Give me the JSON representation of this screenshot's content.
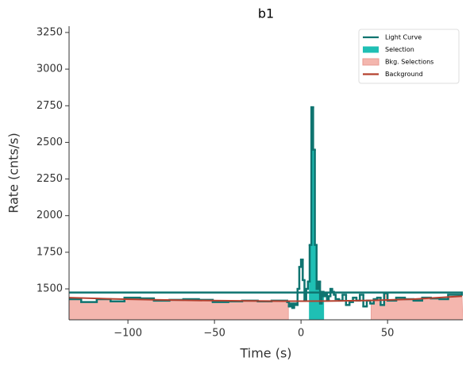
{
  "chart_data": {
    "type": "lightcurve",
    "title": "b1",
    "xlabel": "Time (s)",
    "ylabel": "Rate (cnts/s)",
    "xlim": [
      -134,
      93.5
    ],
    "ylim": [
      1289,
      3293
    ],
    "xticks": [
      {
        "value": -100,
        "label": "−100"
      },
      {
        "value": -50,
        "label": "−50"
      },
      0,
      50
    ],
    "yticks": [
      1500,
      1750,
      2000,
      2250,
      2500,
      2750,
      3000,
      3250
    ],
    "legend": "upper right",
    "series": [
      {
        "name": "Light Curve",
        "color": "#0f7470",
        "bins": [
          -135,
          -127,
          -118,
          -110,
          -102,
          -93,
          -85,
          -76,
          -68,
          -59,
          -51,
          -42,
          -34,
          -25,
          -17,
          -8,
          -7,
          -6,
          -5,
          -4,
          -3,
          -2,
          -1,
          0,
          1,
          2,
          3,
          4,
          5,
          6,
          7,
          8,
          9,
          10,
          11,
          12,
          13,
          14,
          15,
          16,
          17,
          18,
          19,
          20,
          22,
          24,
          26,
          28,
          30,
          32,
          34,
          36,
          38,
          40,
          42,
          44,
          46,
          48,
          50,
          55,
          60,
          65,
          70,
          75,
          80,
          85,
          93
        ],
        "values": [
          1430,
          1410,
          1430,
          1415,
          1440,
          1435,
          1420,
          1425,
          1430,
          1425,
          1410,
          1415,
          1420,
          1415,
          1420,
          1410,
          1380,
          1400,
          1370,
          1400,
          1390,
          1500,
          1650,
          1700,
          1560,
          1420,
          1500,
          1550,
          1800,
          2740,
          2450,
          1800,
          1500,
          1550,
          1400,
          1480,
          1450,
          1470,
          1420,
          1450,
          1500,
          1480,
          1460,
          1430,
          1420,
          1460,
          1390,
          1410,
          1440,
          1420,
          1460,
          1380,
          1420,
          1400,
          1430,
          1440,
          1390,
          1470,
          1420,
          1440,
          1430,
          1420,
          1440,
          1435,
          1430,
          1460,
          1475
        ]
      },
      {
        "name": "Selection",
        "color": "#1fbfb4",
        "ranges": [
          [
            4.6,
            13.3
          ]
        ]
      },
      {
        "name": "Bkg. Selections",
        "color": "#f4b6ae",
        "ranges": [
          [
            -134,
            -7.3
          ],
          [
            40.5,
            93.5
          ]
        ]
      },
      {
        "name": "Background",
        "color": "#b5402f",
        "x": [
          -134,
          -110,
          -85,
          -60,
          -35,
          -10,
          0,
          15,
          40,
          65,
          93
        ],
        "values": [
          1440,
          1432,
          1426,
          1421,
          1418,
          1416,
          1416,
          1417,
          1421,
          1430,
          1450
        ]
      }
    ]
  }
}
